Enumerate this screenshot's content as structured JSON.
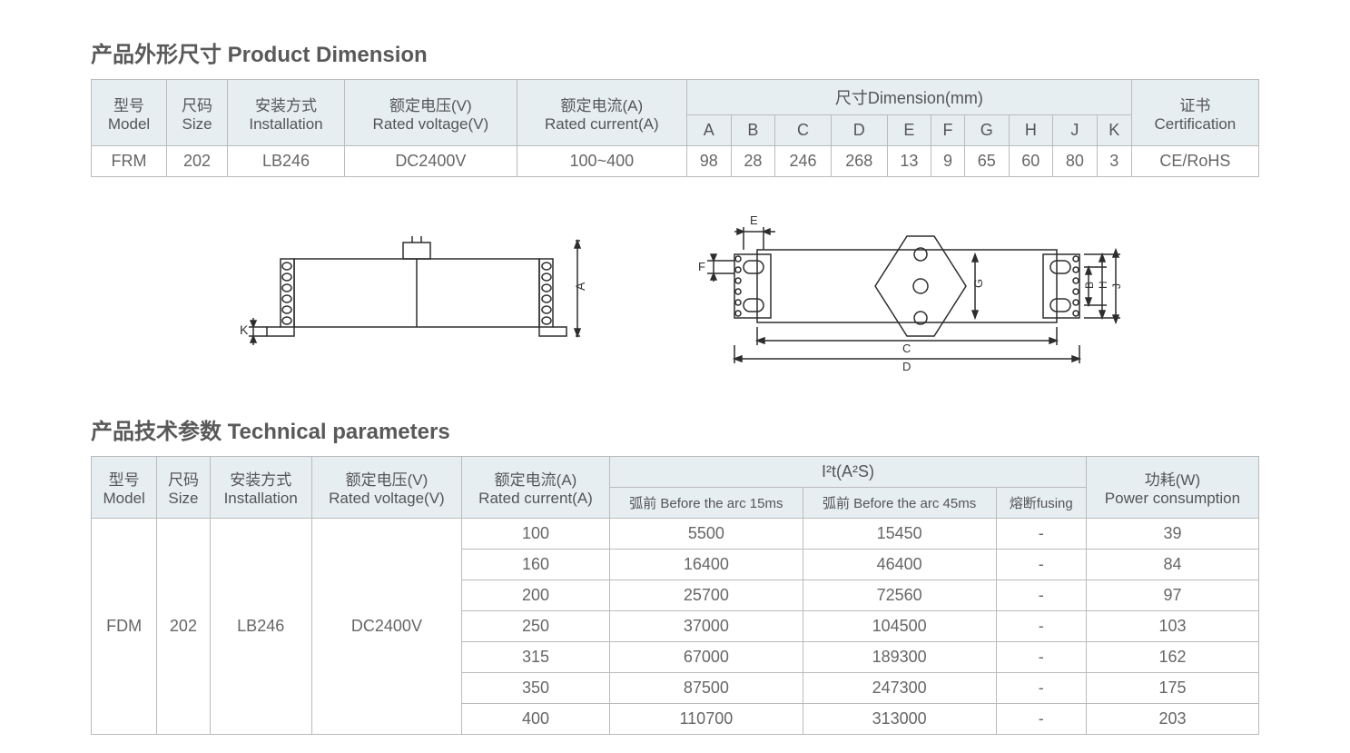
{
  "section1": {
    "title": "产品外形尺寸 Product Dimension"
  },
  "table1": {
    "headers": {
      "model_cn": "型号",
      "model_en": "Model",
      "size_cn": "尺码",
      "size_en": "Size",
      "install_cn": "安装方式",
      "install_en": "Installation",
      "voltage_cn": "额定电压(V)",
      "voltage_en": "Rated voltage(V)",
      "current_cn": "额定电流(A)",
      "current_en": "Rated current(A)",
      "dim": "尺寸Dimension(mm)",
      "cert_cn": "证书",
      "cert_en": "Certification",
      "cols": [
        "A",
        "B",
        "C",
        "D",
        "E",
        "F",
        "G",
        "H",
        "J",
        "K"
      ]
    },
    "row": {
      "model": "FRM",
      "size": "202",
      "install": "LB246",
      "voltage": "DC2400V",
      "current": "100~400",
      "A": "98",
      "B": "28",
      "C": "246",
      "D": "268",
      "E": "13",
      "F": "9",
      "G": "65",
      "H": "60",
      "J": "80",
      "K": "3",
      "cert": "CE/RoHS"
    }
  },
  "diagram": {
    "labels": {
      "A": "A",
      "K": "K",
      "E": "E",
      "F": "F",
      "G": "G",
      "B": "B",
      "H": "H",
      "J": "J",
      "C": "C",
      "D": "D"
    },
    "stroke": "#2d2d2d",
    "stroke_width": 1.5
  },
  "section2": {
    "title": "产品技术参数 Technical parameters"
  },
  "table2": {
    "headers": {
      "model_cn": "型号",
      "model_en": "Model",
      "size_cn": "尺码",
      "size_en": "Size",
      "install_cn": "安装方式",
      "install_en": "Installation",
      "voltage_cn": "额定电压(V)",
      "voltage_en": "Rated voltage(V)",
      "current_cn": "额定电流(A)",
      "current_en": "Rated current(A)",
      "i2t": "I²t(A²S)",
      "arc15": "弧前 Before the arc 15ms",
      "arc45": "弧前 Before the arc 45ms",
      "fusing": "熔断fusing",
      "power_cn": "功耗(W)",
      "power_en": "Power consumption"
    },
    "body": {
      "model": "FDM",
      "size": "202",
      "install": "LB246",
      "voltage": "DC2400V",
      "rows": [
        {
          "current": "100",
          "arc15": "5500",
          "arc45": "15450",
          "fusing": "-",
          "power": "39"
        },
        {
          "current": "160",
          "arc15": "16400",
          "arc45": "46400",
          "fusing": "-",
          "power": "84"
        },
        {
          "current": "200",
          "arc15": "25700",
          "arc45": "72560",
          "fusing": "-",
          "power": "97"
        },
        {
          "current": "250",
          "arc15": "37000",
          "arc45": "104500",
          "fusing": "-",
          "power": "103"
        },
        {
          "current": "315",
          "arc15": "67000",
          "arc45": "189300",
          "fusing": "-",
          "power": "162"
        },
        {
          "current": "350",
          "arc15": "87500",
          "arc45": "247300",
          "fusing": "-",
          "power": "175"
        },
        {
          "current": "400",
          "arc15": "110700",
          "arc45": "313000",
          "fusing": "-",
          "power": "203"
        }
      ]
    }
  }
}
